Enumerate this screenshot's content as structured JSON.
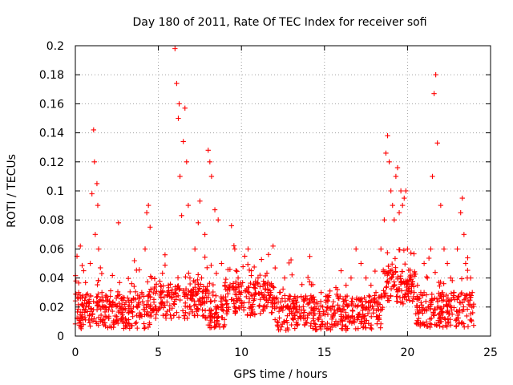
{
  "chart_data": {
    "type": "scatter",
    "title": "Day 180 of 2011, Rate Of TEC Index for receiver sofi",
    "xlabel": "GPS time / hours",
    "ylabel": "ROTI / TECUs",
    "xlim": [
      0,
      25
    ],
    "ylim": [
      0,
      0.2
    ],
    "x_ticks": [
      0,
      5,
      10,
      15,
      20,
      25
    ],
    "y_ticks": [
      0,
      0.02,
      0.04,
      0.06,
      0.08,
      0.1,
      0.12,
      0.14,
      0.16,
      0.18,
      0.2
    ],
    "x_tick_labels": [
      "0",
      "5",
      "10",
      "15",
      "20",
      "25"
    ],
    "y_tick_labels": [
      "0",
      "0.02",
      "0.04",
      "0.06",
      "0.08",
      "0.1",
      "0.12",
      "0.14",
      "0.16",
      "0.18",
      "0.2"
    ],
    "grid": true,
    "marker": "+",
    "color": "#ff0000",
    "series": [
      {
        "name": "ROTI",
        "x": [
          0.1,
          0.2,
          0.3,
          0.4,
          0.5,
          0.6,
          0.8,
          0.9,
          1.0,
          1.1,
          1.15,
          1.2,
          1.3,
          1.35,
          1.4,
          1.5,
          1.6,
          1.8,
          2.0,
          2.2,
          2.4,
          2.6,
          2.8,
          3.0,
          3.2,
          3.5,
          3.8,
          4.0,
          4.2,
          4.3,
          4.4,
          4.5,
          4.6,
          4.8,
          5.0,
          5.2,
          5.4,
          5.6,
          5.8,
          6.0,
          6.1,
          6.2,
          6.25,
          6.3,
          6.4,
          6.5,
          6.6,
          6.7,
          6.8,
          6.9,
          7.0,
          7.2,
          7.4,
          7.5,
          7.6,
          7.8,
          8.0,
          8.1,
          8.2,
          8.4,
          8.6,
          8.8,
          9.0,
          9.4,
          9.6,
          9.8,
          10.0,
          10.2,
          10.4,
          10.6,
          10.8,
          11.0,
          11.2,
          11.5,
          11.8,
          12.0,
          12.3,
          12.6,
          12.9,
          13.2,
          13.6,
          14.0,
          14.4,
          14.8,
          15.2,
          15.6,
          16.0,
          16.3,
          16.6,
          16.9,
          17.2,
          17.5,
          17.8,
          18.1,
          18.4,
          18.6,
          18.7,
          18.8,
          18.9,
          19.0,
          19.1,
          19.2,
          19.3,
          19.4,
          19.5,
          19.6,
          19.7,
          19.8,
          19.9,
          20.0,
          20.2,
          20.4,
          20.6,
          20.8,
          21.0,
          21.2,
          21.4,
          21.5,
          21.6,
          21.7,
          21.8,
          22.0,
          22.2,
          22.4,
          22.6,
          22.8,
          23.0,
          23.2,
          23.3,
          23.4,
          23.5,
          23.6,
          23.8,
          23.9
        ],
        "y": [
          0.055,
          0.03,
          0.062,
          0.022,
          0.045,
          0.018,
          0.02,
          0.05,
          0.098,
          0.142,
          0.12,
          0.07,
          0.105,
          0.09,
          0.06,
          0.025,
          0.03,
          0.02,
          0.018,
          0.02,
          0.022,
          0.078,
          0.02,
          0.018,
          0.016,
          0.02,
          0.022,
          0.03,
          0.06,
          0.085,
          0.09,
          0.075,
          0.04,
          0.02,
          0.018,
          0.03,
          0.056,
          0.035,
          0.03,
          0.198,
          0.174,
          0.15,
          0.16,
          0.11,
          0.083,
          0.134,
          0.157,
          0.12,
          0.09,
          0.04,
          0.03,
          0.06,
          0.078,
          0.093,
          0.04,
          0.07,
          0.128,
          0.12,
          0.11,
          0.087,
          0.08,
          0.05,
          0.035,
          0.076,
          0.06,
          0.04,
          0.03,
          0.055,
          0.06,
          0.045,
          0.035,
          0.04,
          0.03,
          0.025,
          0.035,
          0.02,
          0.03,
          0.04,
          0.025,
          0.02,
          0.018,
          0.022,
          0.025,
          0.03,
          0.02,
          0.018,
          0.045,
          0.035,
          0.04,
          0.06,
          0.05,
          0.04,
          0.035,
          0.03,
          0.06,
          0.08,
          0.126,
          0.138,
          0.12,
          0.1,
          0.09,
          0.08,
          0.11,
          0.116,
          0.085,
          0.1,
          0.09,
          0.095,
          0.1,
          0.06,
          0.04,
          0.03,
          0.035,
          0.03,
          0.05,
          0.04,
          0.06,
          0.11,
          0.167,
          0.18,
          0.133,
          0.09,
          0.06,
          0.05,
          0.04,
          0.03,
          0.06,
          0.085,
          0.095,
          0.07,
          0.05,
          0.04,
          0.04,
          0.03
        ],
        "density": "very dense band of points roughly 0.005-0.03 ROTI from 0 to 24 h, with spikes to ~0.2 near 6 h and ~0.18 near 21.7 h"
      }
    ]
  }
}
